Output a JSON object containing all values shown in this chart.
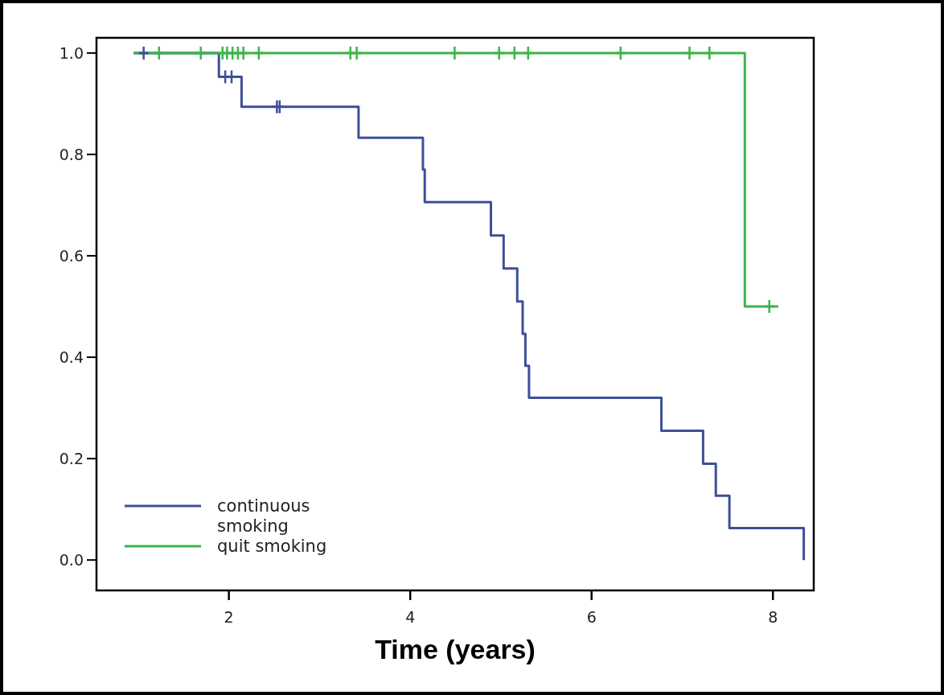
{
  "chart_data": {
    "type": "step",
    "xlabel": "Time (years)",
    "xlim": [
      0.54,
      8.45
    ],
    "xticks": [
      2,
      4,
      6,
      8
    ],
    "ylim": [
      -0.06,
      1.03
    ],
    "yticks": [
      {
        "value": 0,
        "label": "0.0"
      },
      {
        "value": 0.2,
        "label": "0.2"
      },
      {
        "value": 0.4,
        "label": "0.4"
      },
      {
        "value": 0.6,
        "label": "0.6"
      },
      {
        "value": 0.8,
        "label": "0.8"
      },
      {
        "value": 1,
        "label": "1.0"
      }
    ],
    "grid": false,
    "legend": "bottom left",
    "line_style": "solid",
    "series": [
      {
        "name": "continuous smoking",
        "color": "#3d4f9a",
        "x": [
          0.95,
          1.89,
          2.14,
          3.43,
          4.14,
          4.16,
          4.89,
          5.03,
          5.18,
          5.24,
          5.27,
          5.31,
          6.77,
          7.23,
          7.37,
          7.52,
          8.34
        ],
        "values": [
          1,
          0.953,
          0.894,
          0.833,
          0.77,
          0.706,
          0.64,
          0.575,
          0.51,
          0.446,
          0.383,
          0.32,
          0.255,
          0.19,
          0.127,
          0.063,
          0
        ]
      },
      {
        "name": "quit smoking",
        "color": "#3cb44a",
        "x": [
          0.95,
          7.69,
          8.06
        ],
        "values": [
          1,
          0.5,
          0.5
        ]
      },
      {
        "type": "scatter",
        "marker": "cross",
        "color": "#3d4f9a",
        "x": [
          1.06,
          1.96,
          2.03,
          2.53,
          2.56
        ],
        "values": [
          1,
          0.953,
          0.953,
          0.894,
          0.894
        ]
      },
      {
        "type": "scatter",
        "marker": "cross",
        "color": "#3cb44a",
        "x": [
          1.23,
          1.69,
          1.93,
          1.98,
          2.04,
          2.1,
          2.16,
          2.33,
          3.34,
          3.41,
          4.49,
          4.98,
          5.15,
          5.3,
          6.32,
          7.08,
          7.3,
          7.96
        ],
        "values": [
          1,
          1,
          1,
          1,
          1,
          1,
          1,
          1,
          1,
          1,
          1,
          1,
          1,
          1,
          1,
          1,
          1,
          0.5
        ]
      }
    ]
  }
}
